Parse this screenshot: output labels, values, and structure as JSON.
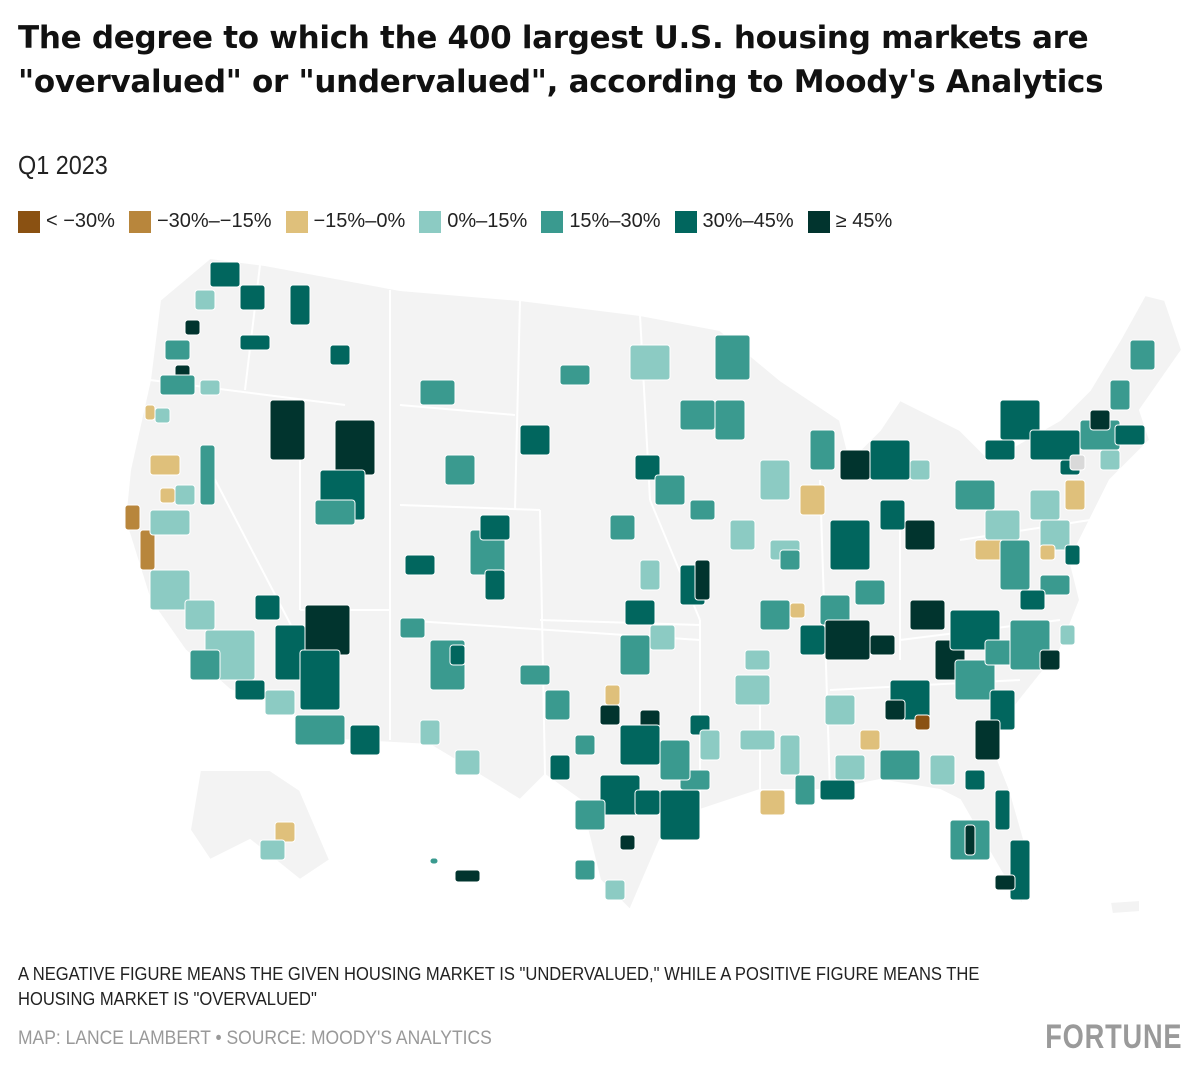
{
  "title": "The degree to which the 400 largest U.S. housing markets are \"overvalued\" or \"undervalued\", according to Moody's Analytics",
  "subtitle": "Q1 2023",
  "legend": [
    {
      "label": "< −30%",
      "color": "#8a5112"
    },
    {
      "label": "−30%–−15%",
      "color": "#b8863c"
    },
    {
      "label": "−15%–0%",
      "color": "#dfc07b"
    },
    {
      "label": "0%–15%",
      "color": "#8ccbc3"
    },
    {
      "label": "15%–30%",
      "color": "#3a9a8f"
    },
    {
      "label": "30%–45%",
      "color": "#01665e"
    },
    {
      "label": "≥ 45%",
      "color": "#01342e"
    }
  ],
  "map_colors": {
    "land": "#f3f3f3",
    "border": "#ffffff",
    "no_data": "#d9d9d9"
  },
  "note": "A NEGATIVE FIGURE MEANS THE GIVEN HOUSING MARKET IS \"UNDERVALUED,\" WHILE A POSITIVE FIGURE MEANS THE HOUSING MARKET IS \"OVERVALUED\"",
  "credit": "MAP: LANCE LAMBERT • SOURCE: MOODY'S ANALYTICS",
  "logo": "FORTUNE"
}
